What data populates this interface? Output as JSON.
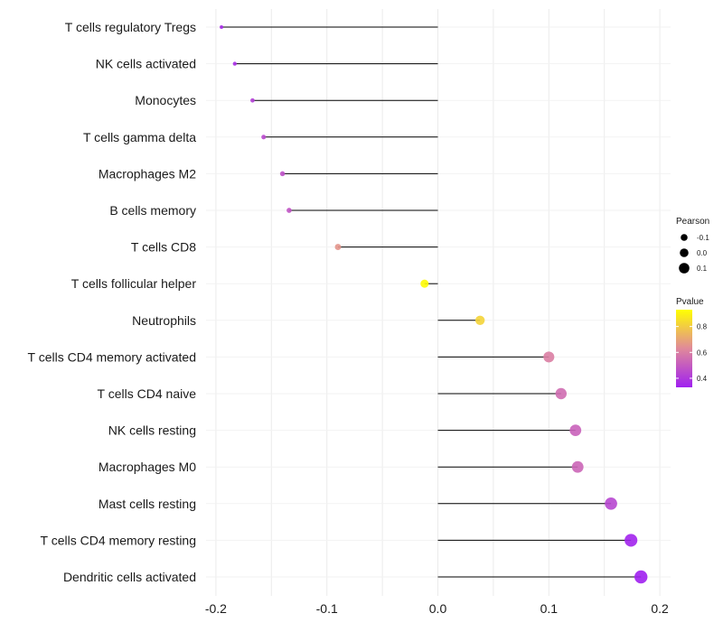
{
  "chart_data": {
    "type": "lollipop",
    "title": "",
    "xlabel": "",
    "ylabel": "",
    "xlim": [
      -0.22,
      0.225
    ],
    "x_ticks": [
      -0.2,
      -0.1,
      0.0,
      0.1,
      0.2
    ],
    "x_tick_labels": [
      "-0.2",
      "-0.1",
      "0.0",
      "0.1",
      "0.2"
    ],
    "grid": true,
    "categories": [
      "T cells regulatory  Tregs",
      "NK cells activated",
      "Monocytes",
      "T cells gamma delta",
      "Macrophages M2",
      "B cells memory",
      "T cells CD8",
      "T cells follicular helper",
      "Neutrophils",
      "T cells CD4 memory activated",
      "T cells CD4 naive",
      "NK cells resting",
      "Macrophages M0",
      "Mast cells resting",
      "T cells CD4 memory resting",
      "Dendritic cells activated"
    ],
    "values": [
      -0.195,
      -0.183,
      -0.167,
      -0.157,
      -0.14,
      -0.134,
      -0.09,
      -0.012,
      0.038,
      0.1,
      0.111,
      0.124,
      0.126,
      0.156,
      0.174,
      0.183
    ],
    "pvalues": [
      0.36,
      0.37,
      0.42,
      0.45,
      0.47,
      0.48,
      0.66,
      0.92,
      0.82,
      0.6,
      0.55,
      0.52,
      0.53,
      0.44,
      0.34,
      0.33
    ],
    "legend": {
      "position": "right",
      "size": {
        "title": "Pearson",
        "labels": [
          "-0.1",
          "0.0",
          "0.1"
        ],
        "values": [
          -0.1,
          0.0,
          0.1
        ]
      },
      "color": {
        "title": "Pvalue",
        "labels": [
          "0.8",
          "0.6",
          "0.4"
        ],
        "values": [
          0.8,
          0.6,
          0.4
        ],
        "range": [
          0.33,
          0.93
        ],
        "low_color": "#a020f0",
        "mid_color": "#e0899a",
        "high_color": "#ffff00"
      }
    }
  }
}
